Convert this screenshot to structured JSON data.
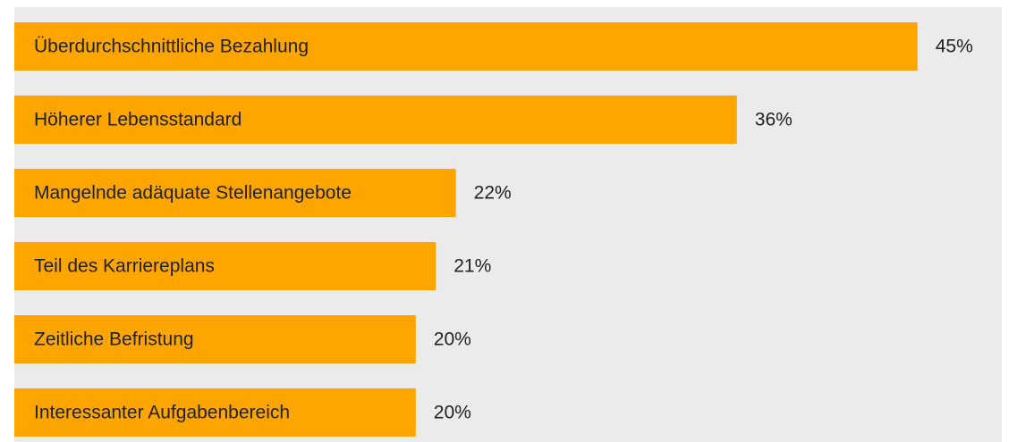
{
  "chart_data": {
    "type": "barh",
    "categories": [
      "Überdurchschnittliche Bezahlung",
      "Höherer Lebensstandard",
      "Mangelnde adäquate Stellenangebote",
      "Teil des Karriereplans",
      "Zeitliche Befristung",
      "Interessanter Aufgabenbereich"
    ],
    "values": [
      45,
      36,
      22,
      21,
      20,
      20
    ],
    "value_labels": [
      "45%",
      "36%",
      "22%",
      "21%",
      "20%",
      "20%"
    ],
    "color": "#ffa500",
    "xlim": [
      0,
      49.2
    ]
  }
}
